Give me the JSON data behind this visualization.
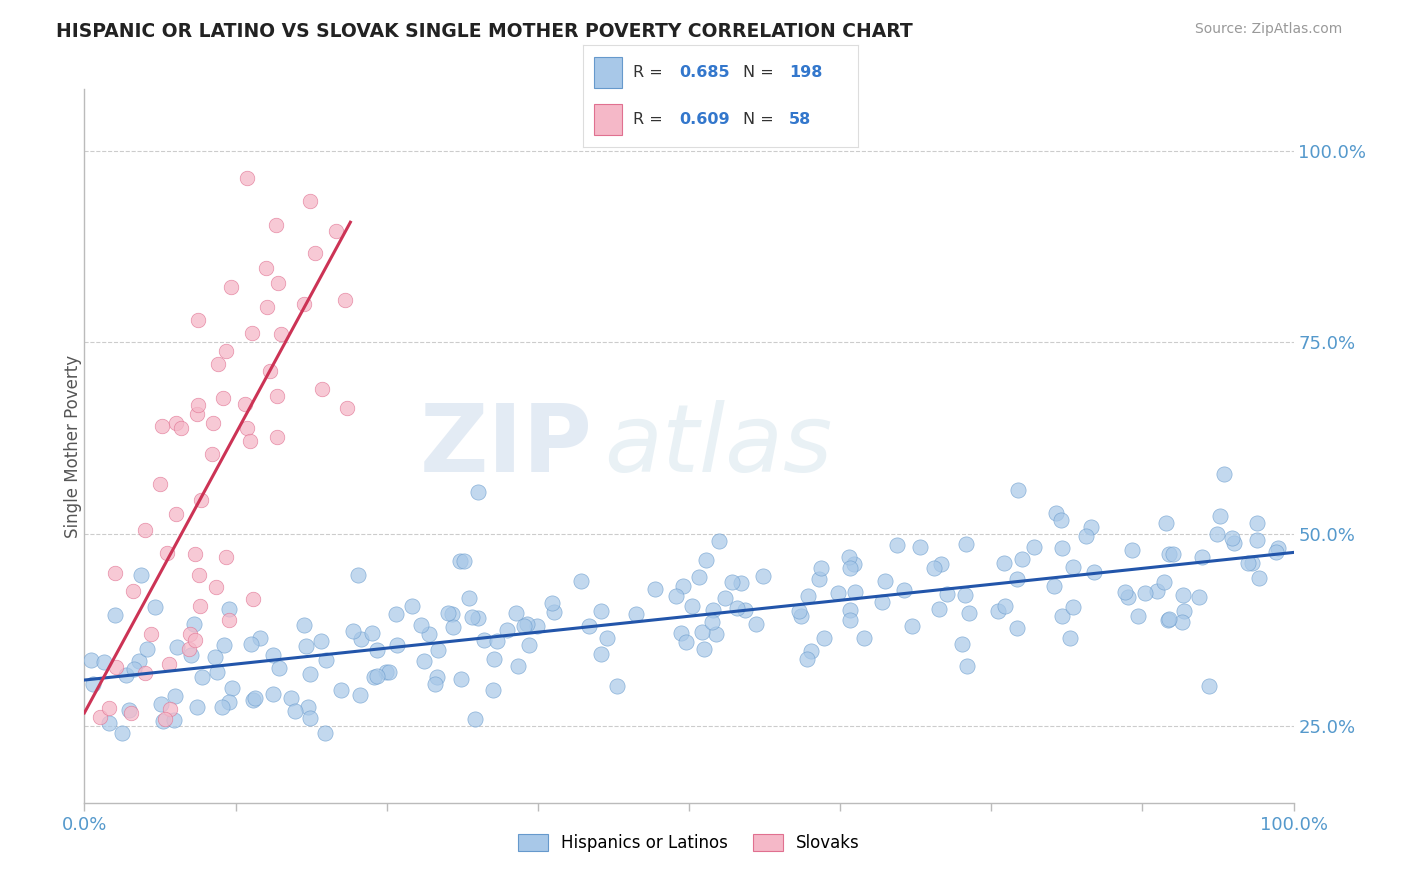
{
  "title": "HISPANIC OR LATINO VS SLOVAK SINGLE MOTHER POVERTY CORRELATION CHART",
  "source_text": "Source: ZipAtlas.com",
  "ylabel": "Single Mother Poverty",
  "legend_blue_label": "Hispanics or Latinos",
  "legend_pink_label": "Slovaks",
  "watermark_zip": "ZIP",
  "watermark_atlas": "atlas",
  "blue_color": "#a8c8e8",
  "blue_edge_color": "#6699cc",
  "pink_color": "#f5b8c8",
  "pink_edge_color": "#e07090",
  "blue_line_color": "#2255aa",
  "pink_line_color": "#cc3355",
  "background_color": "#ffffff",
  "grid_color": "#cccccc",
  "title_color": "#222222",
  "axis_label_color": "#5599cc",
  "n_blue": 198,
  "n_pink": 58,
  "r_blue": 0.685,
  "r_pink": 0.609,
  "xlim": [
    0,
    1
  ],
  "ylim": [
    0.15,
    1.08
  ],
  "y_ticks": [
    0.25,
    0.5,
    0.75,
    1.0
  ],
  "y_tick_labels": [
    "25.0%",
    "50.0%",
    "75.0%",
    "100.0%"
  ],
  "x_tick_labels_left": "0.0%",
  "x_tick_labels_right": "100.0%"
}
